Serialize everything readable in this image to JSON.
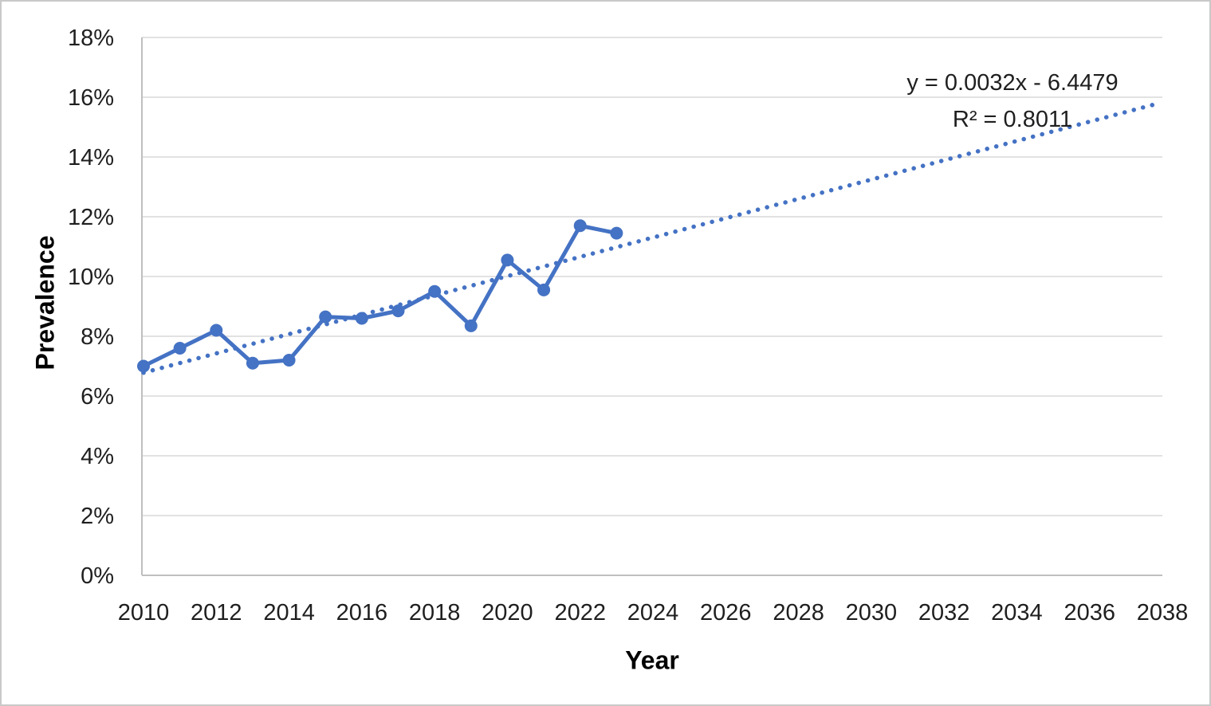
{
  "figure": {
    "background": "#ffffff",
    "border_color": "#c9c9c9"
  },
  "chart_data": {
    "type": "line",
    "title": "",
    "xlabel": "Year",
    "ylabel": "Prevalence",
    "grid": true,
    "legend": "none",
    "colors": {
      "series": "#4472C4",
      "trendline": "#4472C4",
      "gridline": "#d9d9d9",
      "axis_line": "#bfbfbf",
      "tick_label": "#1f1f1f"
    },
    "x_axis": {
      "min": 2010,
      "max": 2038,
      "tick_step": 2,
      "ticks": [
        2010,
        2012,
        2014,
        2016,
        2018,
        2020,
        2022,
        2024,
        2026,
        2028,
        2030,
        2032,
        2034,
        2036,
        2038
      ]
    },
    "y_axis": {
      "min": 0,
      "max": 18,
      "tick_step": 2,
      "unit": "%",
      "ticks": [
        0,
        2,
        4,
        6,
        8,
        10,
        12,
        14,
        16,
        18
      ]
    },
    "series": [
      {
        "name": "Prevalence",
        "marker": "circle",
        "x": [
          2010,
          2011,
          2012,
          2013,
          2014,
          2015,
          2016,
          2017,
          2018,
          2019,
          2020,
          2021,
          2022,
          2023
        ],
        "values_pct": [
          7.0,
          7.6,
          8.2,
          7.1,
          7.2,
          8.65,
          8.6,
          8.85,
          9.5,
          8.35,
          10.55,
          9.55,
          11.7,
          11.45
        ]
      }
    ],
    "trendline": {
      "style": "dotted",
      "equation": "y = 0.0032x - 6.4479",
      "r_squared": "R² = 0.8011",
      "x_start": 2010,
      "y_start_pct": 6.78,
      "x_end": 2037.85,
      "y_end_pct": 15.78
    }
  }
}
